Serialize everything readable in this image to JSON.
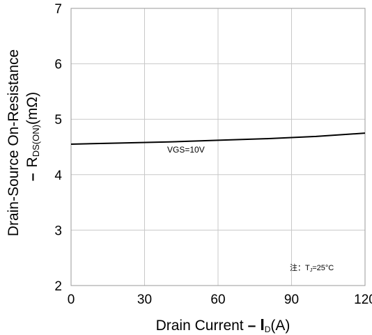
{
  "chart_data": {
    "type": "line",
    "xlabel_main": "Drain Current",
    "xlabel_dash": "–",
    "xlabel_symbol": "I",
    "xlabel_sub": "D",
    "xlabel_unit": "(A)",
    "ylabel_line1": "Drain-Source On-Resistance",
    "ylabel_dash": "–",
    "ylabel_symbol": "R",
    "ylabel_sub": "DS(ON)",
    "ylabel_unit": "(mΩ)",
    "xlim": [
      0,
      120
    ],
    "ylim": [
      2,
      7
    ],
    "x_ticks": [
      "0",
      "30",
      "60",
      "90",
      "120"
    ],
    "y_ticks": [
      "2",
      "3",
      "4",
      "5",
      "6",
      "7"
    ],
    "grid": true,
    "series": [
      {
        "x": [
          0,
          20,
          40,
          60,
          80,
          100,
          120
        ],
        "y": [
          4.55,
          4.57,
          4.59,
          4.62,
          4.65,
          4.69,
          4.75
        ],
        "color": "#000000"
      }
    ],
    "annotation": "VGS=10V",
    "note_prefix": "注：",
    "note_symbol": "T",
    "note_sub": "J",
    "note_value": "=25°C"
  }
}
